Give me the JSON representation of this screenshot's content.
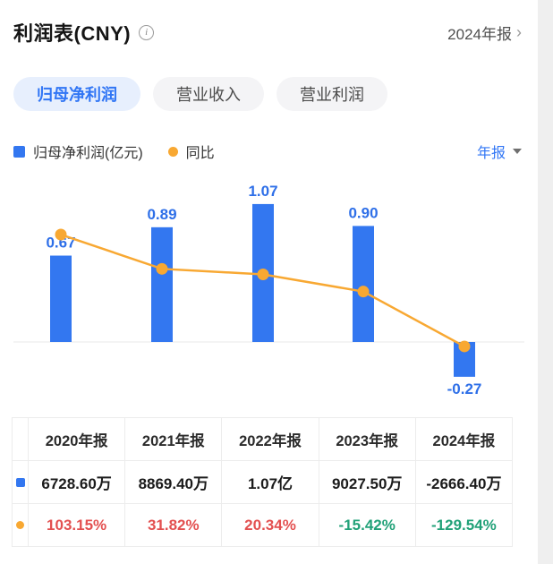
{
  "header": {
    "title": "利润表(CNY)",
    "info_icon": "i",
    "period": "2024年报",
    "chevron": "›"
  },
  "tabs": [
    {
      "label": "归母净利润",
      "active": true
    },
    {
      "label": "营业收入",
      "active": false
    },
    {
      "label": "营业利润",
      "active": false
    }
  ],
  "legend": {
    "bar": "归母净利润(亿元)",
    "line": "同比",
    "period_selector": "年报"
  },
  "colors": {
    "accent_blue": "#3377f0",
    "label_blue": "#2e6fe8",
    "orange": "#f8a832",
    "positive_red": "#e35050",
    "negative_green": "#21a178",
    "baseline_gray": "#e9e9e9"
  },
  "chart_data": {
    "type": "bar",
    "subtype": "bar+line combo",
    "categories": [
      "2020年报",
      "2021年报",
      "2022年报",
      "2023年报",
      "2024年报"
    ],
    "series": [
      {
        "name": "归母净利润(亿元)",
        "type": "bar",
        "unit": "亿元",
        "values": [
          0.67,
          0.89,
          1.07,
          0.9,
          -0.27
        ],
        "color": "#3377f0"
      },
      {
        "name": "同比",
        "type": "line",
        "unit": "%",
        "values": [
          103.15,
          31.82,
          20.34,
          -15.42,
          -129.54
        ],
        "color": "#f8a832"
      }
    ],
    "title": "归母净利润(亿元) / 同比",
    "xlabel": "",
    "ylabel": "",
    "grid": false,
    "legend_position": "top",
    "baseline": 0,
    "bar_value_labels": true
  },
  "table": {
    "headers": [
      "2020年报",
      "2021年报",
      "2022年报",
      "2023年报",
      "2024年报"
    ],
    "rows": [
      {
        "series": "归母净利润",
        "values": [
          "6728.60万",
          "8869.40万",
          "1.07亿",
          "9027.50万",
          "-2666.40万"
        ]
      },
      {
        "series": "同比",
        "values": [
          "103.15%",
          "31.82%",
          "20.34%",
          "-15.42%",
          "-129.54%"
        ],
        "value_colors": [
          "#e35050",
          "#e35050",
          "#e35050",
          "#21a178",
          "#21a178"
        ]
      }
    ]
  }
}
